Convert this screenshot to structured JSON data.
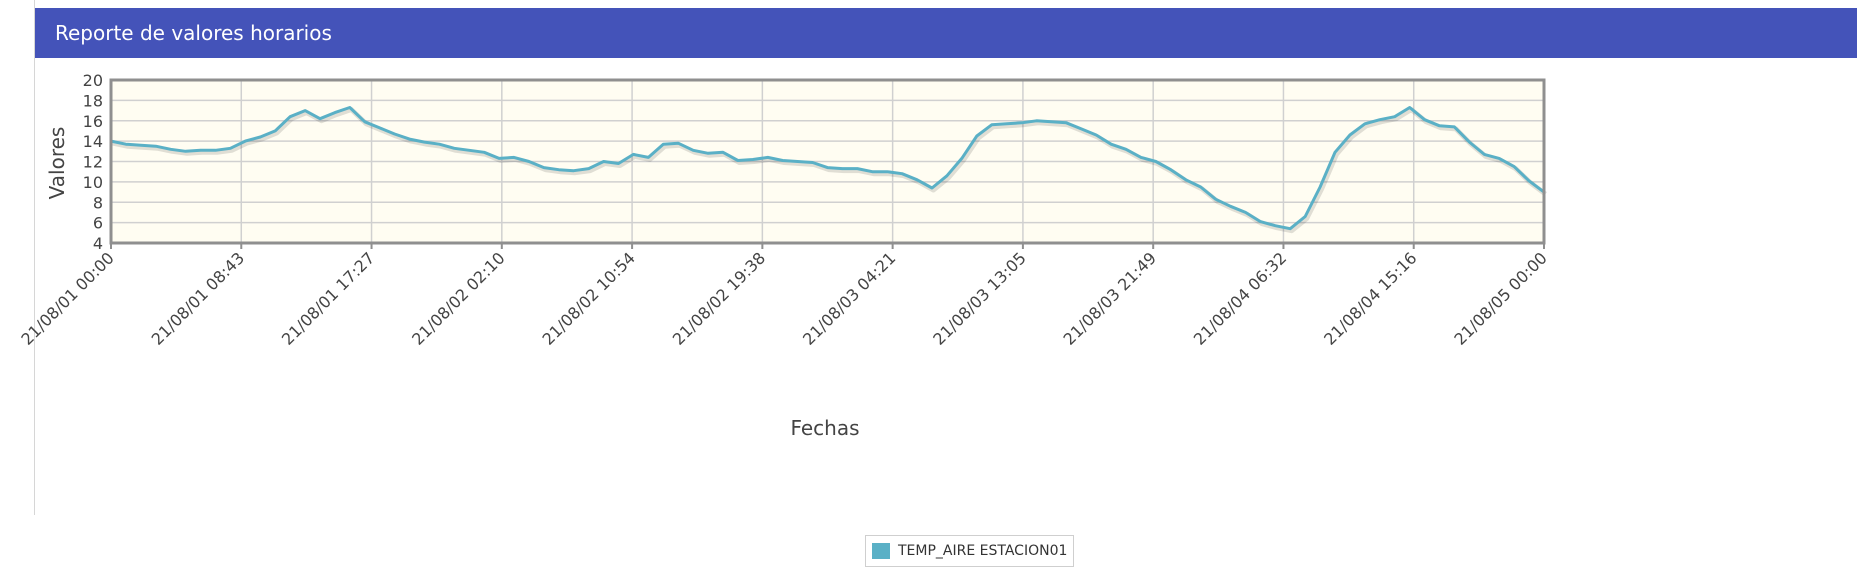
{
  "panel": {
    "title": "Reporte de valores horarios"
  },
  "colors": {
    "header_bg": "#4453b9",
    "plot_bg": "#fffdf2",
    "series_line": "#5ab0c6",
    "grid": "#d0d0d0",
    "frame": "#8f8f8f"
  },
  "chart_data": {
    "type": "line",
    "title": "",
    "xlabel": "Fechas",
    "ylabel": "Valores",
    "ylim": [
      4,
      20
    ],
    "yticks": [
      "4",
      "6",
      "8",
      "10",
      "12",
      "14",
      "16",
      "18",
      "20"
    ],
    "xtick_labels": [
      "21/08/01 00:00",
      "21/08/01 08:43",
      "21/08/01 17:27",
      "21/08/02 02:10",
      "21/08/02 10:54",
      "21/08/02 19:38",
      "21/08/03 04:21",
      "21/08/03 13:05",
      "21/08/03 21:49",
      "21/08/04 06:32",
      "21/08/04 15:16",
      "21/08/05 00:00"
    ],
    "x_range": [
      "21/08/01 00:00",
      "21/08/05 00:00"
    ],
    "grid": true,
    "legend": "bottom-center",
    "series": [
      {
        "name": "TEMP_AIRE ESTACION01",
        "values": [
          14.0,
          13.7,
          13.6,
          13.5,
          13.2,
          13.0,
          13.1,
          13.1,
          13.3,
          14.0,
          14.4,
          15.0,
          16.4,
          17.0,
          16.2,
          16.8,
          17.3,
          15.9,
          15.3,
          14.7,
          14.2,
          13.9,
          13.7,
          13.3,
          13.1,
          12.9,
          12.3,
          12.4,
          12.0,
          11.4,
          11.2,
          11.1,
          11.3,
          12.0,
          11.8,
          12.7,
          12.4,
          13.7,
          13.8,
          13.1,
          12.8,
          12.9,
          12.1,
          12.2,
          12.4,
          12.1,
          12.0,
          11.9,
          11.4,
          11.3,
          11.3,
          11.0,
          11.0,
          10.8,
          10.2,
          9.4,
          10.6,
          12.3,
          14.5,
          15.6,
          15.7,
          15.8,
          16.0,
          15.9,
          15.8,
          15.2,
          14.6,
          13.7,
          13.2,
          12.4,
          12.0,
          11.2,
          10.2,
          9.5,
          8.3,
          7.6,
          7.0,
          6.1,
          5.7,
          5.4,
          6.6,
          9.5,
          12.9,
          14.6,
          15.7,
          16.1,
          16.4,
          17.3,
          16.1,
          15.5,
          15.4,
          13.9,
          12.7,
          12.3,
          11.5,
          10.1,
          9.0
        ]
      }
    ]
  }
}
